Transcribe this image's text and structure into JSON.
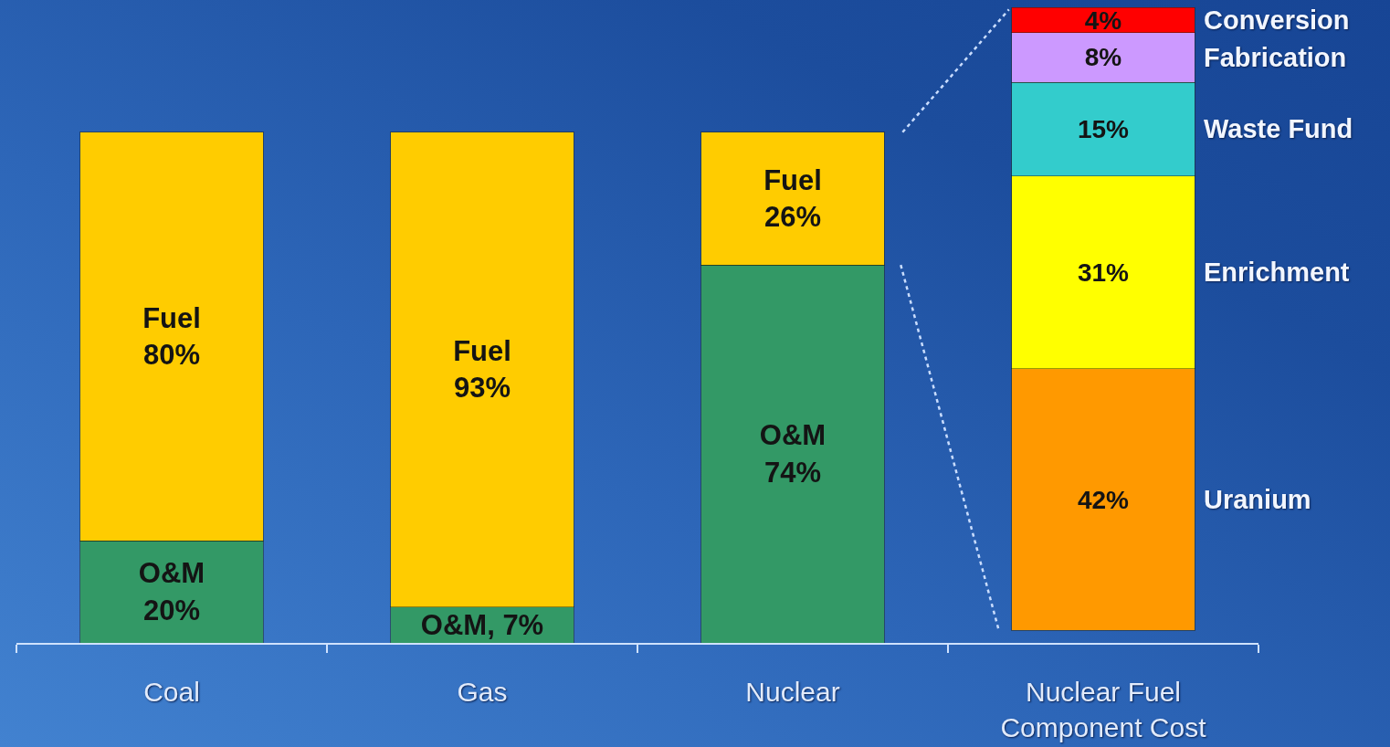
{
  "chart_data": {
    "type": "bar",
    "stacked": true,
    "tick_labels": "x",
    "categories": [
      "Coal",
      "Gas",
      "Nuclear",
      "Nuclear Fuel Component Cost"
    ],
    "ylim": [
      0,
      125
    ],
    "y2lim": [
      -2,
      100.5
    ],
    "series": [
      {
        "color": "#339966",
        "values": [
          20,
          7,
          74,
          null
        ],
        "value_labels": [
          "O&M\n20%",
          "O&M, 7%",
          "O&M\n74%",
          null
        ]
      },
      {
        "color": "#ffcc00",
        "values": [
          80,
          93,
          26,
          null
        ],
        "value_labels": [
          "Fuel\n80%",
          "Fuel\n93%",
          "Fuel\n26%",
          null
        ]
      },
      {
        "name": "Uranium",
        "color": "#ff9900",
        "axis": "y2",
        "values": [
          null,
          null,
          null,
          42
        ],
        "value_labels": [
          null,
          null,
          null,
          "42%"
        ]
      },
      {
        "name": "Enrichment",
        "color": "#ffff00",
        "axis": "y2",
        "values": [
          null,
          null,
          null,
          31
        ],
        "value_labels": [
          null,
          null,
          null,
          "31%"
        ]
      },
      {
        "name": "Waste Fund",
        "color": "#33cccc",
        "axis": "y2",
        "values": [
          null,
          null,
          null,
          15
        ],
        "value_labels": [
          null,
          null,
          null,
          "15%"
        ]
      },
      {
        "name": "Fabrication",
        "color": "#cc99ff",
        "axis": "y2",
        "values": [
          null,
          null,
          null,
          8
        ],
        "value_labels": [
          null,
          null,
          null,
          "8%"
        ]
      },
      {
        "name": "Conversion",
        "color": "#ff0000",
        "axis": "y2",
        "values": [
          null,
          null,
          null,
          4
        ],
        "value_labels": [
          null,
          null,
          null,
          "4%"
        ]
      }
    ]
  }
}
